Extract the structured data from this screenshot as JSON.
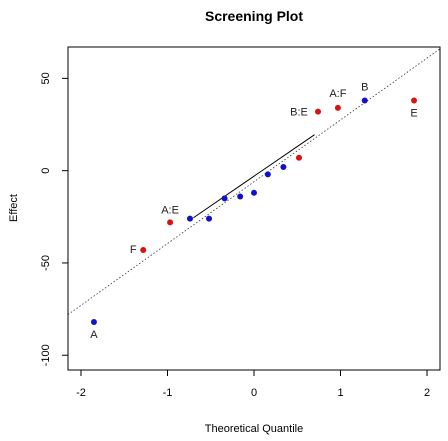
{
  "chart_data": {
    "type": "scatter",
    "title": "Screening Plot",
    "xlabel": "Theoretical Quantile",
    "ylabel": "Effect",
    "xlim": [
      -2.15,
      2.15
    ],
    "ylim": [
      -108,
      67
    ],
    "x_ticks": [
      -2,
      -1,
      0,
      1,
      2
    ],
    "y_ticks": [
      -100,
      -50,
      0,
      50
    ],
    "grid": false,
    "colors": {
      "significant": "#dd1111",
      "other": "#1111cc",
      "line": "#333333"
    },
    "reference_line": {
      "x": [
        -2.15,
        2.15
      ],
      "y": [
        -78,
        66
      ],
      "style": "dotted"
    },
    "fit_segment": {
      "x": [
        -0.7,
        0.7
      ],
      "y": [
        -25.5,
        19.5
      ],
      "style": "solid"
    },
    "points": [
      {
        "x": -1.85,
        "y": -82,
        "group": "significant-effect",
        "color": "#1111cc",
        "label": "A"
      },
      {
        "x": -1.28,
        "y": -43,
        "group": "significant-effect",
        "color": "#dd1111",
        "label": "F"
      },
      {
        "x": -0.97,
        "y": -28,
        "group": "significant-effect",
        "color": "#dd1111",
        "label": "A:E"
      },
      {
        "x": -0.74,
        "y": -26,
        "group": "other",
        "color": "#1111cc",
        "label": ""
      },
      {
        "x": -0.52,
        "y": -26,
        "group": "other",
        "color": "#1111cc",
        "label": ""
      },
      {
        "x": -0.34,
        "y": -15,
        "group": "other",
        "color": "#1111cc",
        "label": ""
      },
      {
        "x": -0.16,
        "y": -14,
        "group": "other",
        "color": "#1111cc",
        "label": ""
      },
      {
        "x": 0.0,
        "y": -12,
        "group": "other",
        "color": "#1111cc",
        "label": ""
      },
      {
        "x": 0.16,
        "y": -2,
        "group": "other",
        "color": "#1111cc",
        "label": ""
      },
      {
        "x": 0.34,
        "y": 2,
        "group": "other",
        "color": "#1111cc",
        "label": ""
      },
      {
        "x": 0.52,
        "y": 7,
        "group": "significant-effect",
        "color": "#dd1111",
        "label": ""
      },
      {
        "x": 0.74,
        "y": 32,
        "group": "significant-effect",
        "color": "#dd1111",
        "label": "B:E"
      },
      {
        "x": 0.97,
        "y": 34,
        "group": "significant-effect",
        "color": "#dd1111",
        "label": "A:F"
      },
      {
        "x": 1.28,
        "y": 38,
        "group": "significant-effect",
        "color": "#1111cc",
        "label": "B"
      },
      {
        "x": 1.85,
        "y": 38,
        "group": "significant-effect",
        "color": "#dd1111",
        "label": "E"
      }
    ]
  }
}
